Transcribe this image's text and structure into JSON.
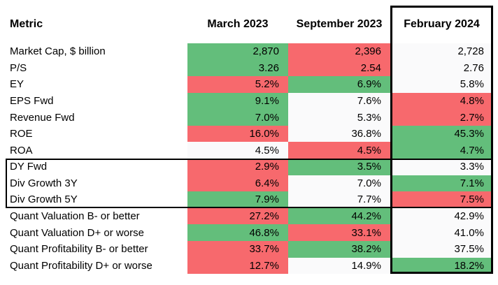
{
  "table": {
    "header": {
      "metric": "Metric",
      "columns": [
        "March 2023",
        "September 2023",
        "February 2024"
      ]
    },
    "rows": [
      {
        "metric": "Market Cap, $ billion",
        "values": [
          "2,870",
          "2,396",
          "2,728"
        ],
        "colors": [
          "green",
          "red",
          "white"
        ]
      },
      {
        "metric": "P/S",
        "values": [
          "3.26",
          "2.54",
          "2.76"
        ],
        "colors": [
          "green",
          "red",
          "white"
        ]
      },
      {
        "metric": "EY",
        "values": [
          "5.2%",
          "6.9%",
          "5.8%"
        ],
        "colors": [
          "red",
          "green",
          "white"
        ]
      },
      {
        "metric": "EPS Fwd",
        "values": [
          "9.1%",
          "7.6%",
          "4.8%"
        ],
        "colors": [
          "green",
          "white",
          "red"
        ]
      },
      {
        "metric": "Revenue Fwd",
        "values": [
          "7.0%",
          "5.3%",
          "2.7%"
        ],
        "colors": [
          "green",
          "white",
          "red"
        ]
      },
      {
        "metric": "ROE",
        "values": [
          "16.0%",
          "36.8%",
          "45.3%"
        ],
        "colors": [
          "red",
          "white",
          "green"
        ]
      },
      {
        "metric": "ROA",
        "values": [
          "4.5%",
          "4.5%",
          "4.7%"
        ],
        "colors": [
          "white",
          "red",
          "green"
        ]
      },
      {
        "metric": "DY Fwd",
        "values": [
          "2.9%",
          "3.5%",
          "3.3%"
        ],
        "colors": [
          "red",
          "green",
          "white"
        ]
      },
      {
        "metric": "Div Growth 3Y",
        "values": [
          "6.4%",
          "7.0%",
          "7.1%"
        ],
        "colors": [
          "red",
          "white",
          "green"
        ]
      },
      {
        "metric": "Div Growth 5Y",
        "values": [
          "7.9%",
          "7.7%",
          "7.5%"
        ],
        "colors": [
          "green",
          "white",
          "red"
        ]
      },
      {
        "metric": "Quant Valuation B- or better",
        "values": [
          "27.2%",
          "44.2%",
          "42.9%"
        ],
        "colors": [
          "red",
          "green",
          "white"
        ]
      },
      {
        "metric": "Quant Valuation D+ or worse",
        "values": [
          "46.8%",
          "33.1%",
          "41.0%"
        ],
        "colors": [
          "green",
          "red",
          "white"
        ]
      },
      {
        "metric": "Quant Profitability B- or better",
        "values": [
          "33.7%",
          "38.2%",
          "37.5%"
        ],
        "colors": [
          "red",
          "green",
          "white"
        ]
      },
      {
        "metric": "Quant Profitability D+ or worse",
        "values": [
          "12.7%",
          "14.9%",
          "18.2%"
        ],
        "colors": [
          "red",
          "white",
          "green"
        ]
      }
    ],
    "colors": {
      "positive_green": "#63BE7B",
      "negative_red": "#F7696D",
      "neutral_white": "#FAFAFB",
      "outline_black": "#000000"
    }
  },
  "chart_data": {
    "type": "table",
    "columns": [
      "March 2023",
      "September 2023",
      "February 2024"
    ],
    "rows": [
      {
        "label": "Market Cap, $ billion",
        "unit": "",
        "values": [
          2870,
          2396,
          2728
        ]
      },
      {
        "label": "P/S",
        "unit": "",
        "values": [
          3.26,
          2.54,
          2.76
        ]
      },
      {
        "label": "EY",
        "unit": "%",
        "values": [
          5.2,
          6.9,
          5.8
        ]
      },
      {
        "label": "EPS Fwd",
        "unit": "%",
        "values": [
          9.1,
          7.6,
          4.8
        ]
      },
      {
        "label": "Revenue Fwd",
        "unit": "%",
        "values": [
          7.0,
          5.3,
          2.7
        ]
      },
      {
        "label": "ROE",
        "unit": "%",
        "values": [
          16.0,
          36.8,
          45.3
        ]
      },
      {
        "label": "ROA",
        "unit": "%",
        "values": [
          4.5,
          4.5,
          4.7
        ]
      },
      {
        "label": "DY Fwd",
        "unit": "%",
        "values": [
          2.9,
          3.5,
          3.3
        ]
      },
      {
        "label": "Div Growth 3Y",
        "unit": "%",
        "values": [
          6.4,
          7.0,
          7.1
        ]
      },
      {
        "label": "Div Growth 5Y",
        "unit": "%",
        "values": [
          7.9,
          7.7,
          7.5
        ]
      },
      {
        "label": "Quant Valuation B- or better",
        "unit": "%",
        "values": [
          27.2,
          44.2,
          42.9
        ]
      },
      {
        "label": "Quant Valuation D+ or worse",
        "unit": "%",
        "values": [
          46.8,
          33.1,
          41.0
        ]
      },
      {
        "label": "Quant Profitability B- or better",
        "unit": "%",
        "values": [
          33.7,
          38.2,
          37.5
        ]
      },
      {
        "label": "Quant Profitability D+ or worse",
        "unit": "%",
        "values": [
          12.7,
          14.9,
          18.2
        ]
      }
    ],
    "cell_colors": [
      [
        "green",
        "red",
        "white"
      ],
      [
        "green",
        "red",
        "white"
      ],
      [
        "red",
        "green",
        "white"
      ],
      [
        "green",
        "white",
        "red"
      ],
      [
        "green",
        "white",
        "red"
      ],
      [
        "red",
        "white",
        "green"
      ],
      [
        "white",
        "red",
        "green"
      ],
      [
        "red",
        "green",
        "white"
      ],
      [
        "red",
        "white",
        "green"
      ],
      [
        "green",
        "white",
        "red"
      ],
      [
        "red",
        "green",
        "white"
      ],
      [
        "green",
        "red",
        "white"
      ],
      [
        "red",
        "green",
        "white"
      ],
      [
        "red",
        "white",
        "green"
      ]
    ],
    "layout_hints": {
      "highlighted_column": "February 2024",
      "outlined_row_group": [
        "DY Fwd",
        "Div Growth 3Y",
        "Div Growth 5Y"
      ]
    }
  }
}
